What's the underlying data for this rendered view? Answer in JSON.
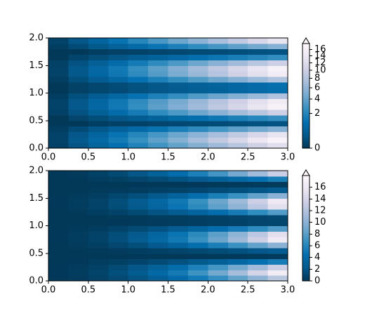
{
  "chart_data": [
    {
      "type": "heatmap",
      "norm": "power",
      "gamma": 0.5,
      "clim": [
        0,
        18
      ],
      "extend": "max",
      "colormap": [
        "#023858",
        "#045a8d",
        "#0570b0",
        "#3690c0",
        "#74a9cf",
        "#a6bddb",
        "#d0d1e6",
        "#ece7f2",
        "#fff7fb"
      ],
      "x": [
        0.125,
        0.375,
        0.625,
        0.875,
        1.125,
        1.375,
        1.625,
        1.875,
        2.125,
        2.375,
        2.625,
        2.875
      ],
      "y": [
        0.05,
        0.15,
        0.25,
        0.35,
        0.45,
        0.55,
        0.65,
        0.75,
        0.85,
        0.95,
        1.05,
        1.15,
        1.25,
        1.35,
        1.45,
        1.55,
        1.65,
        1.75,
        1.85,
        1.95
      ],
      "z": [
        [
          0.02,
          0.21,
          0.58,
          1.13,
          1.87,
          2.8,
          3.91,
          5.2,
          6.68,
          8.34,
          10.19,
          12.22
        ],
        [
          0.03,
          0.28,
          0.78,
          1.53,
          2.53,
          3.78,
          5.27,
          7.02,
          9.02,
          11.26,
          13.76,
          16.51
        ],
        [
          0.03,
          0.23,
          0.62,
          1.22,
          2.02,
          3.02,
          4.22,
          5.62,
          7.22,
          9.01,
          11.01,
          13.21
        ],
        [
          0.01,
          0.09,
          0.25,
          0.5,
          0.82,
          1.23,
          1.71,
          2.28,
          2.93,
          3.66,
          4.47,
          5.36
        ],
        [
          0,
          0,
          0.01,
          0.02,
          0.03,
          0.04,
          0.06,
          0.08,
          0.1,
          0.12,
          0.15,
          0.18
        ],
        [
          0,
          0.04,
          0.11,
          0.23,
          0.37,
          0.56,
          0.78,
          1.03,
          1.33,
          1.66,
          2.03,
          2.43
        ],
        [
          0.02,
          0.17,
          0.48,
          0.93,
          1.54,
          2.3,
          3.21,
          4.27,
          5.49,
          6.85,
          8.37,
          10.04
        ],
        [
          0.03,
          0.27,
          0.76,
          1.48,
          2.45,
          3.66,
          5.12,
          6.81,
          8.75,
          10.93,
          13.35,
          16.02
        ],
        [
          0.03,
          0.25,
          0.7,
          1.38,
          2.28,
          3.4,
          4.75,
          6.32,
          8.12,
          10.14,
          12.39,
          14.86
        ],
        [
          0.01,
          0.13,
          0.36,
          0.71,
          1.17,
          1.75,
          2.44,
          3.25,
          4.18,
          5.22,
          6.37,
          7.65
        ],
        [
          0,
          0.02,
          0.05,
          0.09,
          0.15,
          0.23,
          0.32,
          0.42,
          0.54,
          0.68,
          0.83,
          0.99
        ],
        [
          0,
          0.02,
          0.05,
          0.1,
          0.16,
          0.24,
          0.33,
          0.44,
          0.56,
          0.71,
          0.86,
          1.03
        ],
        [
          0.01,
          0.13,
          0.37,
          0.72,
          1.18,
          1.77,
          2.47,
          3.28,
          4.22,
          5.27,
          6.44,
          7.72
        ],
        [
          0.03,
          0.25,
          0.71,
          1.38,
          2.28,
          3.41,
          4.76,
          6.34,
          8.15,
          10.18,
          12.43,
          14.91
        ],
        [
          0.03,
          0.27,
          0.76,
          1.48,
          2.45,
          3.66,
          5.11,
          6.8,
          8.74,
          10.91,
          13.33,
          15.99
        ],
        [
          0.02,
          0.17,
          0.47,
          0.92,
          1.53,
          2.28,
          3.19,
          4.24,
          5.45,
          6.81,
          8.32,
          9.98
        ],
        [
          0,
          0.04,
          0.11,
          0.22,
          0.36,
          0.54,
          0.76,
          1.01,
          1.3,
          1.62,
          1.98,
          2.38
        ],
        [
          0,
          0,
          0.01,
          0.02,
          0.03,
          0.04,
          0.06,
          0.08,
          0.1,
          0.12,
          0.15,
          0.18
        ],
        [
          0.01,
          0.09,
          0.26,
          0.5,
          0.83,
          1.24,
          1.73,
          2.3,
          2.95,
          3.69,
          4.51,
          5.41
        ],
        [
          0.03,
          0.23,
          0.63,
          1.23,
          2.03,
          3.03,
          4.23,
          5.64,
          7.24,
          9.04,
          11.05,
          13.25
        ]
      ],
      "xlim": [
        0,
        3
      ],
      "ylim": [
        0,
        2
      ],
      "xticks": [
        {
          "value": 0,
          "label": "0.0"
        },
        {
          "value": 0.5,
          "label": "0.5"
        },
        {
          "value": 1,
          "label": "1.0"
        },
        {
          "value": 1.5,
          "label": "1.5"
        },
        {
          "value": 2,
          "label": "2.0"
        },
        {
          "value": 2.5,
          "label": "2.5"
        },
        {
          "value": 3,
          "label": "3.0"
        }
      ],
      "yticks": [
        {
          "value": 0,
          "label": "0.0"
        },
        {
          "value": 0.5,
          "label": "0.5"
        },
        {
          "value": 1,
          "label": "1.0"
        },
        {
          "value": 1.5,
          "label": "1.5"
        },
        {
          "value": 2,
          "label": "2.0"
        }
      ],
      "cticks": [
        0,
        2,
        4,
        6,
        8,
        10,
        12,
        14,
        16
      ]
    },
    {
      "type": "heatmap",
      "norm": "linear",
      "clim": [
        0,
        18
      ],
      "extend": "max",
      "colormap": [
        "#023858",
        "#045a8d",
        "#0570b0",
        "#3690c0",
        "#74a9cf",
        "#a6bddb",
        "#d0d1e6",
        "#ece7f2",
        "#fff7fb"
      ],
      "x": [
        0.125,
        0.375,
        0.625,
        0.875,
        1.125,
        1.375,
        1.625,
        1.875,
        2.125,
        2.375,
        2.625,
        2.875
      ],
      "y": [
        0.05,
        0.15,
        0.25,
        0.35,
        0.45,
        0.55,
        0.65,
        0.75,
        0.85,
        0.95,
        1.05,
        1.15,
        1.25,
        1.35,
        1.45,
        1.55,
        1.65,
        1.75,
        1.85,
        1.95
      ],
      "z": [
        [
          0.02,
          0.21,
          0.58,
          1.13,
          1.87,
          2.8,
          3.91,
          5.2,
          6.68,
          8.34,
          10.19,
          12.22
        ],
        [
          0.03,
          0.28,
          0.78,
          1.53,
          2.53,
          3.78,
          5.27,
          7.02,
          9.02,
          11.26,
          13.76,
          16.51
        ],
        [
          0.03,
          0.23,
          0.62,
          1.22,
          2.02,
          3.02,
          4.22,
          5.62,
          7.22,
          9.01,
          11.01,
          13.21
        ],
        [
          0.01,
          0.09,
          0.25,
          0.5,
          0.82,
          1.23,
          1.71,
          2.28,
          2.93,
          3.66,
          4.47,
          5.36
        ],
        [
          0,
          0,
          0.01,
          0.02,
          0.03,
          0.04,
          0.06,
          0.08,
          0.1,
          0.12,
          0.15,
          0.18
        ],
        [
          0,
          0.04,
          0.11,
          0.23,
          0.37,
          0.56,
          0.78,
          1.03,
          1.33,
          1.66,
          2.03,
          2.43
        ],
        [
          0.02,
          0.17,
          0.48,
          0.93,
          1.54,
          2.3,
          3.21,
          4.27,
          5.49,
          6.85,
          8.37,
          10.04
        ],
        [
          0.03,
          0.27,
          0.76,
          1.48,
          2.45,
          3.66,
          5.12,
          6.81,
          8.75,
          10.93,
          13.35,
          16.02
        ],
        [
          0.03,
          0.25,
          0.7,
          1.38,
          2.28,
          3.4,
          4.75,
          6.32,
          8.12,
          10.14,
          12.39,
          14.86
        ],
        [
          0.01,
          0.13,
          0.36,
          0.71,
          1.17,
          1.75,
          2.44,
          3.25,
          4.18,
          5.22,
          6.37,
          7.65
        ],
        [
          0,
          0.02,
          0.05,
          0.09,
          0.15,
          0.23,
          0.32,
          0.42,
          0.54,
          0.68,
          0.83,
          0.99
        ],
        [
          0,
          0.02,
          0.05,
          0.1,
          0.16,
          0.24,
          0.33,
          0.44,
          0.56,
          0.71,
          0.86,
          1.03
        ],
        [
          0.01,
          0.13,
          0.37,
          0.72,
          1.18,
          1.77,
          2.47,
          3.28,
          4.22,
          5.27,
          6.44,
          7.72
        ],
        [
          0.03,
          0.25,
          0.71,
          1.38,
          2.28,
          3.41,
          4.76,
          6.34,
          8.15,
          10.18,
          12.43,
          14.91
        ],
        [
          0.03,
          0.27,
          0.76,
          1.48,
          2.45,
          3.66,
          5.11,
          6.8,
          8.74,
          10.91,
          13.33,
          15.99
        ],
        [
          0.02,
          0.17,
          0.47,
          0.92,
          1.53,
          2.28,
          3.19,
          4.24,
          5.45,
          6.81,
          8.32,
          9.98
        ],
        [
          0,
          0.04,
          0.11,
          0.22,
          0.36,
          0.54,
          0.76,
          1.01,
          1.3,
          1.62,
          1.98,
          2.38
        ],
        [
          0,
          0,
          0.01,
          0.02,
          0.03,
          0.04,
          0.06,
          0.08,
          0.1,
          0.12,
          0.15,
          0.18
        ],
        [
          0.01,
          0.09,
          0.26,
          0.5,
          0.83,
          1.24,
          1.73,
          2.3,
          2.95,
          3.69,
          4.51,
          5.41
        ],
        [
          0.03,
          0.23,
          0.63,
          1.23,
          2.03,
          3.03,
          4.23,
          5.64,
          7.24,
          9.04,
          11.05,
          13.25
        ]
      ],
      "xlim": [
        0,
        3
      ],
      "ylim": [
        0,
        2
      ],
      "xticks": [
        {
          "value": 0,
          "label": "0.0"
        },
        {
          "value": 0.5,
          "label": "0.5"
        },
        {
          "value": 1,
          "label": "1.0"
        },
        {
          "value": 1.5,
          "label": "1.5"
        },
        {
          "value": 2,
          "label": "2.0"
        },
        {
          "value": 2.5,
          "label": "2.5"
        },
        {
          "value": 3,
          "label": "3.0"
        }
      ],
      "yticks": [
        {
          "value": 0,
          "label": "0.0"
        },
        {
          "value": 0.5,
          "label": "0.5"
        },
        {
          "value": 1,
          "label": "1.0"
        },
        {
          "value": 1.5,
          "label": "1.5"
        },
        {
          "value": 2,
          "label": "2.0"
        }
      ],
      "cticks": [
        0,
        2,
        4,
        6,
        8,
        10,
        12,
        14,
        16
      ]
    }
  ]
}
